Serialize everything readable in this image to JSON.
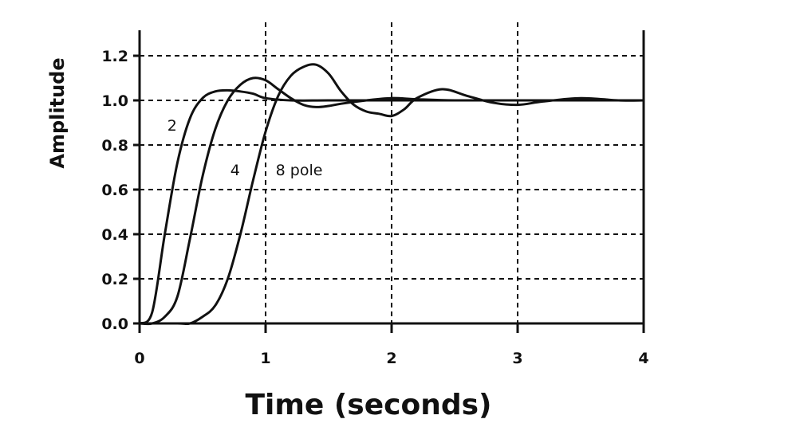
{
  "chart_data": {
    "type": "line",
    "xlabel": "Time (seconds)",
    "ylabel": "Amplitude",
    "xlim": [
      0,
      4
    ],
    "ylim": [
      0,
      1.2
    ],
    "xticks": [
      0,
      1,
      2,
      3,
      4
    ],
    "xtick_labels": [
      "0",
      "1",
      "2",
      "3",
      "4"
    ],
    "yticks": [
      0,
      0.2,
      0.4,
      0.6,
      0.8,
      1.0,
      1.2
    ],
    "ytick_labels": [
      "0.0",
      "0.2",
      "0.4",
      "0.6",
      "0.8",
      "1.0",
      "1.2"
    ],
    "grid": true,
    "series": [
      {
        "name": "2",
        "x": [
          0,
          0.1,
          0.2,
          0.3,
          0.4,
          0.5,
          0.6,
          0.7,
          0.8,
          0.9,
          1.0,
          1.2,
          1.5,
          2.0,
          3.0,
          4.0
        ],
        "y": [
          0,
          0.05,
          0.4,
          0.72,
          0.92,
          1.01,
          1.04,
          1.045,
          1.04,
          1.03,
          1.01,
          1.0,
          1.0,
          1.0,
          1.0,
          1.0
        ]
      },
      {
        "name": "4",
        "x": [
          0,
          0.1,
          0.2,
          0.3,
          0.4,
          0.5,
          0.6,
          0.7,
          0.8,
          0.9,
          1.0,
          1.1,
          1.2,
          1.3,
          1.4,
          1.5,
          1.6,
          1.8,
          2.0,
          2.2,
          2.5,
          3.0,
          4.0
        ],
        "y": [
          0,
          0.0,
          0.03,
          0.12,
          0.38,
          0.66,
          0.87,
          1.0,
          1.07,
          1.1,
          1.09,
          1.05,
          1.01,
          0.98,
          0.97,
          0.975,
          0.985,
          1.0,
          1.01,
          1.005,
          1.0,
          1.0,
          1.0
        ]
      },
      {
        "name": "8 pole",
        "x": [
          0,
          0.3,
          0.4,
          0.5,
          0.6,
          0.7,
          0.8,
          0.9,
          1.0,
          1.1,
          1.2,
          1.3,
          1.4,
          1.5,
          1.6,
          1.7,
          1.8,
          1.9,
          2.0,
          2.1,
          2.2,
          2.4,
          2.6,
          2.8,
          3.0,
          3.2,
          3.5,
          3.8,
          4.0
        ],
        "y": [
          0,
          0.0,
          0.0,
          0.03,
          0.08,
          0.2,
          0.4,
          0.64,
          0.86,
          1.02,
          1.11,
          1.15,
          1.16,
          1.12,
          1.04,
          0.98,
          0.95,
          0.94,
          0.93,
          0.96,
          1.01,
          1.05,
          1.02,
          0.99,
          0.98,
          0.995,
          1.01,
          1.0,
          1.0
        ]
      }
    ],
    "annotations": [
      {
        "text": "2",
        "x": 0.22,
        "y": 0.89
      },
      {
        "text": "4",
        "x": 0.72,
        "y": 0.69
      },
      {
        "text": "8 pole",
        "x": 1.08,
        "y": 0.69
      }
    ]
  }
}
